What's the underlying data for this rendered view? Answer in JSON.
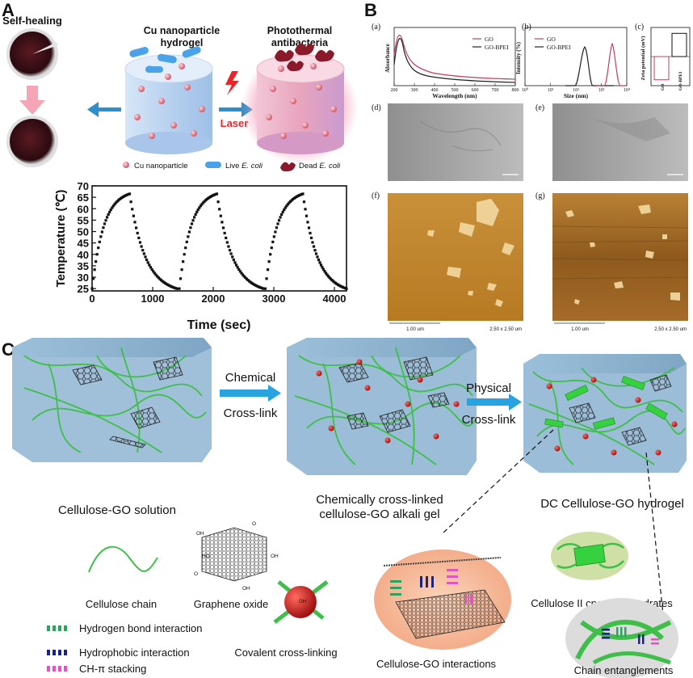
{
  "panel_A": {
    "letter": "A",
    "self_healing": "Self-healing",
    "center_title_1": "Cu  nanoparticle",
    "center_title_2": "hydrogel",
    "right_title_1": "Photothermal",
    "right_title_2": "antibacteria",
    "laser": "Laser",
    "legend_cu": "Cu  nanoparticle",
    "legend_live_pre": "Live ",
    "legend_live_italic": "E. coli",
    "legend_dead_pre": "Dead ",
    "legend_dead_italic": "E. coli",
    "colors": {
      "cylinder": "#b9d3ef",
      "hot": "#e9a0b8",
      "bacteria_live": "#4aa3e8",
      "bacteria_dead": "#8a1a2a",
      "arrow": "#2f8fc9",
      "pink_arrow": "#f4a6b6",
      "laser": "#e8252b"
    },
    "chart_data": {
      "type": "scatter",
      "xlabel": "Time (sec)",
      "ylabel": "Temperature (℃)",
      "xlim": [
        0,
        4200
      ],
      "ylim": [
        24,
        70
      ],
      "x_ticks": [
        "0",
        "1000",
        "2000",
        "3000",
        "4000"
      ],
      "y_ticks": [
        "25",
        "30",
        "35",
        "40",
        "45",
        "50",
        "55",
        "60",
        "65",
        "70"
      ],
      "cycles": [
        {
          "heat_start": 0,
          "peak_time": 620,
          "cool_end": 1400
        },
        {
          "heat_start": 1440,
          "peak_time": 2060,
          "cool_end": 2830
        },
        {
          "heat_start": 2860,
          "peak_time": 3480,
          "cool_end": 4200
        }
      ],
      "baseline": 25,
      "peak": 66.5
    }
  },
  "panel_B": {
    "letter": "B",
    "a": {
      "label": "(a)",
      "xlabel": "Wavelength (nm)",
      "ylabel": "Absorbance",
      "x_ticks": [
        "200",
        "300",
        "400",
        "500",
        "600",
        "700",
        "800"
      ],
      "legend": [
        "GO",
        "GO-BPEI"
      ]
    },
    "b": {
      "label": "(b)",
      "xlabel": "Size (nm)",
      "ylabel": "Intensity (%)",
      "x_ticks": [
        "10⁰",
        "10¹",
        "10²",
        "10³",
        "10⁴"
      ],
      "legend": [
        "GO",
        "GO-BPEI"
      ]
    },
    "c": {
      "label": "(c)",
      "ylabel": "Zeta potential (mV)",
      "categories": [
        "GO",
        "GO-BPEI"
      ],
      "values": [
        -38,
        38
      ]
    },
    "d": {
      "label": "(d)"
    },
    "e": {
      "label": "(e)"
    },
    "f": {
      "label": "(f)",
      "scale_left": "1.00 um",
      "scale_right": "2.50 x 2.50 um"
    },
    "g": {
      "label": "(g)",
      "scale_left": "1.00 um",
      "scale_right": "2.50 x 2.50 um"
    },
    "colors": {
      "go": "#c0405a",
      "go_bpei": "#222222",
      "afm_bg": "#c88a2e",
      "tem_bg": "#9a9a9a"
    }
  },
  "panel_C": {
    "letter": "C",
    "chemical": "Chemical",
    "cross_link_1": "Cross-link",
    "physical": "Physical",
    "cross_link_2": "Cross-link",
    "solution": "Cellulose-GO solution",
    "alkali_1": "Chemically cross-linked",
    "alkali_2": "cellulose-GO alkali gel",
    "hydrogel": "DC Cellulose-GO hydrogel",
    "cellulose_chain": "Cellulose chain",
    "graphene_oxide": "Graphene oxide",
    "hbond": "Hydrogen bond interaction",
    "hydrophobic": "Hydrophobic interaction",
    "chpi": "CH-π stacking",
    "covalent": "Covalent cross-linking",
    "cgo_interactions": "Cellulose-GO interactions",
    "crystallite": "Cellulose II crystallite hydrates",
    "entanglements": "Chain entanglements",
    "colors": {
      "gel": "#8fb3cf",
      "chain": "#3fbf4a",
      "node": "#c0392b",
      "hbond": "#2ca25f",
      "hydrophobic": "#1a237e",
      "chpi": "#e055c0",
      "arrow": "#29a3e0"
    }
  }
}
